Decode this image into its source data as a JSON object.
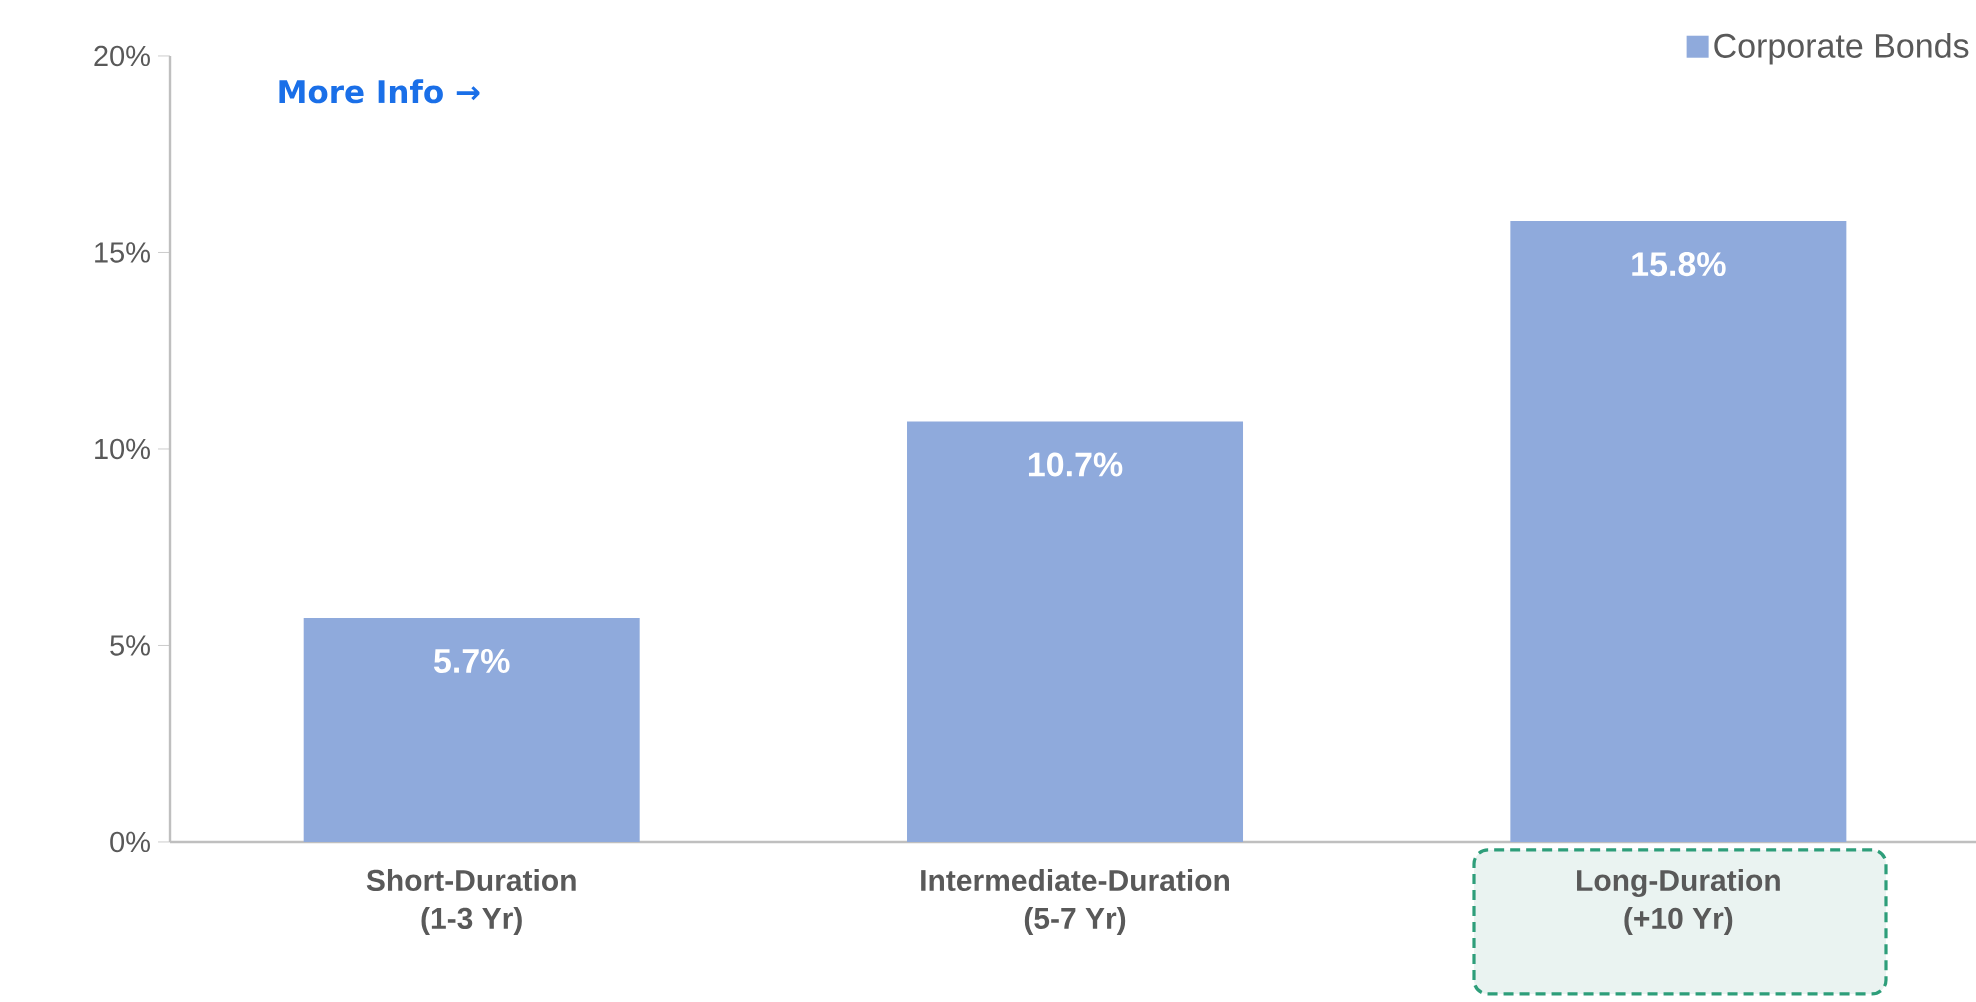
{
  "chart_data": {
    "type": "bar",
    "categories": [
      "Short-Duration (1-3 Yr)",
      "Intermediate-Duration (5-7 Yr)",
      "Long-Duration (+10 Yr)"
    ],
    "series": [
      {
        "name": "Corporate Bonds",
        "color": "#8faadc",
        "values": [
          5.7,
          10.7,
          15.8
        ],
        "value_labels": [
          "5.7%",
          "10.7%",
          "15.8%"
        ]
      }
    ],
    "ylim": [
      0,
      20
    ],
    "yticks": [
      {
        "value": 0,
        "label": "0%"
      },
      {
        "value": 5,
        "label": "5%"
      },
      {
        "value": 10,
        "label": "10%"
      },
      {
        "value": 15,
        "label": "15%"
      },
      {
        "value": 20,
        "label": "20%"
      }
    ],
    "legend": "top right",
    "annotations": [
      "More Info →"
    ]
  }
}
